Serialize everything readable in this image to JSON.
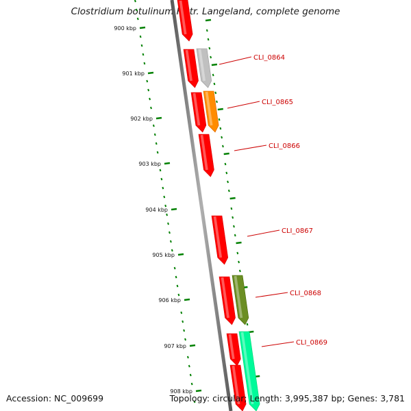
{
  "title": "Clostridium botulinum F str. Langeland, complete genome",
  "footer": {
    "accession": "Accession: NC_009699",
    "summary": "Topology: circular; Length: 3,995,387 bp; Genes: 3,781"
  },
  "kbp_labels": [
    "900 kbp",
    "901 kbp",
    "902 kbp",
    "903 kbp",
    "904 kbp",
    "905 kbp",
    "906 kbp",
    "907 kbp",
    "908 kbp"
  ],
  "gene_labels": [
    "CLI_0864",
    "CLI_0865",
    "CLI_0866",
    "CLI_0867",
    "CLI_0868",
    "CLI_0869"
  ],
  "colors": {
    "forward_cds": "#ff0000",
    "reverse_cds": "#ff0000",
    "CLI_0864": "#c0c0c0",
    "CLI_0865": "#ff8c00",
    "CLI_0867": "#ff0000",
    "CLI_0868": "#6b8e23",
    "CLI_0869": "#00fa9a",
    "backbone": "#808080",
    "ticks": "#008000",
    "label": "#cc0000"
  }
}
